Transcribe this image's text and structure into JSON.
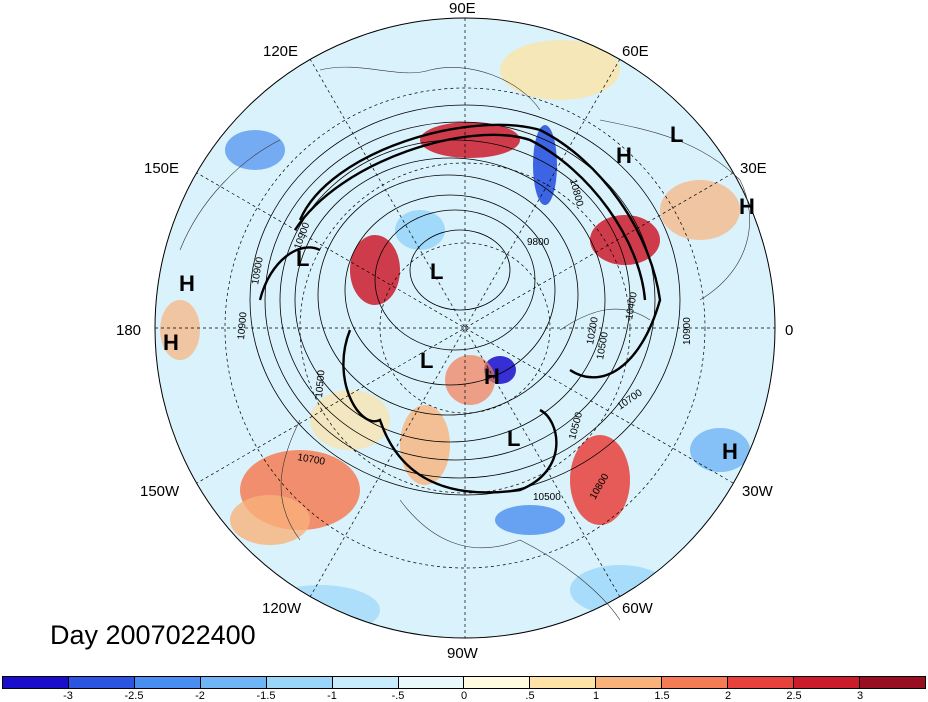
{
  "title": "Day 2007022400",
  "longitude_labels": {
    "lon_90e": "90E",
    "lon_60e": "60E",
    "lon_30e": "30E",
    "lon_0": "0",
    "lon_30w": "30W",
    "lon_60w": "60W",
    "lon_90w": "90W",
    "lon_120w": "120W",
    "lon_150w": "150W",
    "lon_180": "180",
    "lon_150e": "150E",
    "lon_120e": "120E"
  },
  "pressure_centers": [
    {
      "type": "H"
    },
    {
      "type": "L"
    },
    {
      "type": "H"
    },
    {
      "type": "H"
    },
    {
      "type": "H"
    },
    {
      "type": "L"
    },
    {
      "type": "L"
    },
    {
      "type": "H"
    },
    {
      "type": "L"
    },
    {
      "type": "H"
    },
    {
      "type": "L"
    }
  ],
  "contour_labels": [
    "9800",
    "10400",
    "10200",
    "10900",
    "10900",
    "10700",
    "10500",
    "10500",
    "10800",
    "10500",
    "10700",
    "10500",
    "10900",
    "10900",
    "10800"
  ],
  "colorbar": {
    "colors": [
      "#1a0dcc",
      "#2b55e0",
      "#4a8df0",
      "#6fb4f5",
      "#9ad6fa",
      "#c8ecfb",
      "#e8f8fb",
      "#fffbe1",
      "#fde3a8",
      "#f9b27a",
      "#f47c54",
      "#e8403a",
      "#cb1c2c",
      "#9a0e22"
    ],
    "tick_labels": [
      "-3",
      "-2.5",
      "-2",
      "-1.5",
      "-1",
      "-.5",
      "0",
      ".5",
      "1",
      "1.5",
      "2",
      "2.5",
      "3"
    ]
  }
}
